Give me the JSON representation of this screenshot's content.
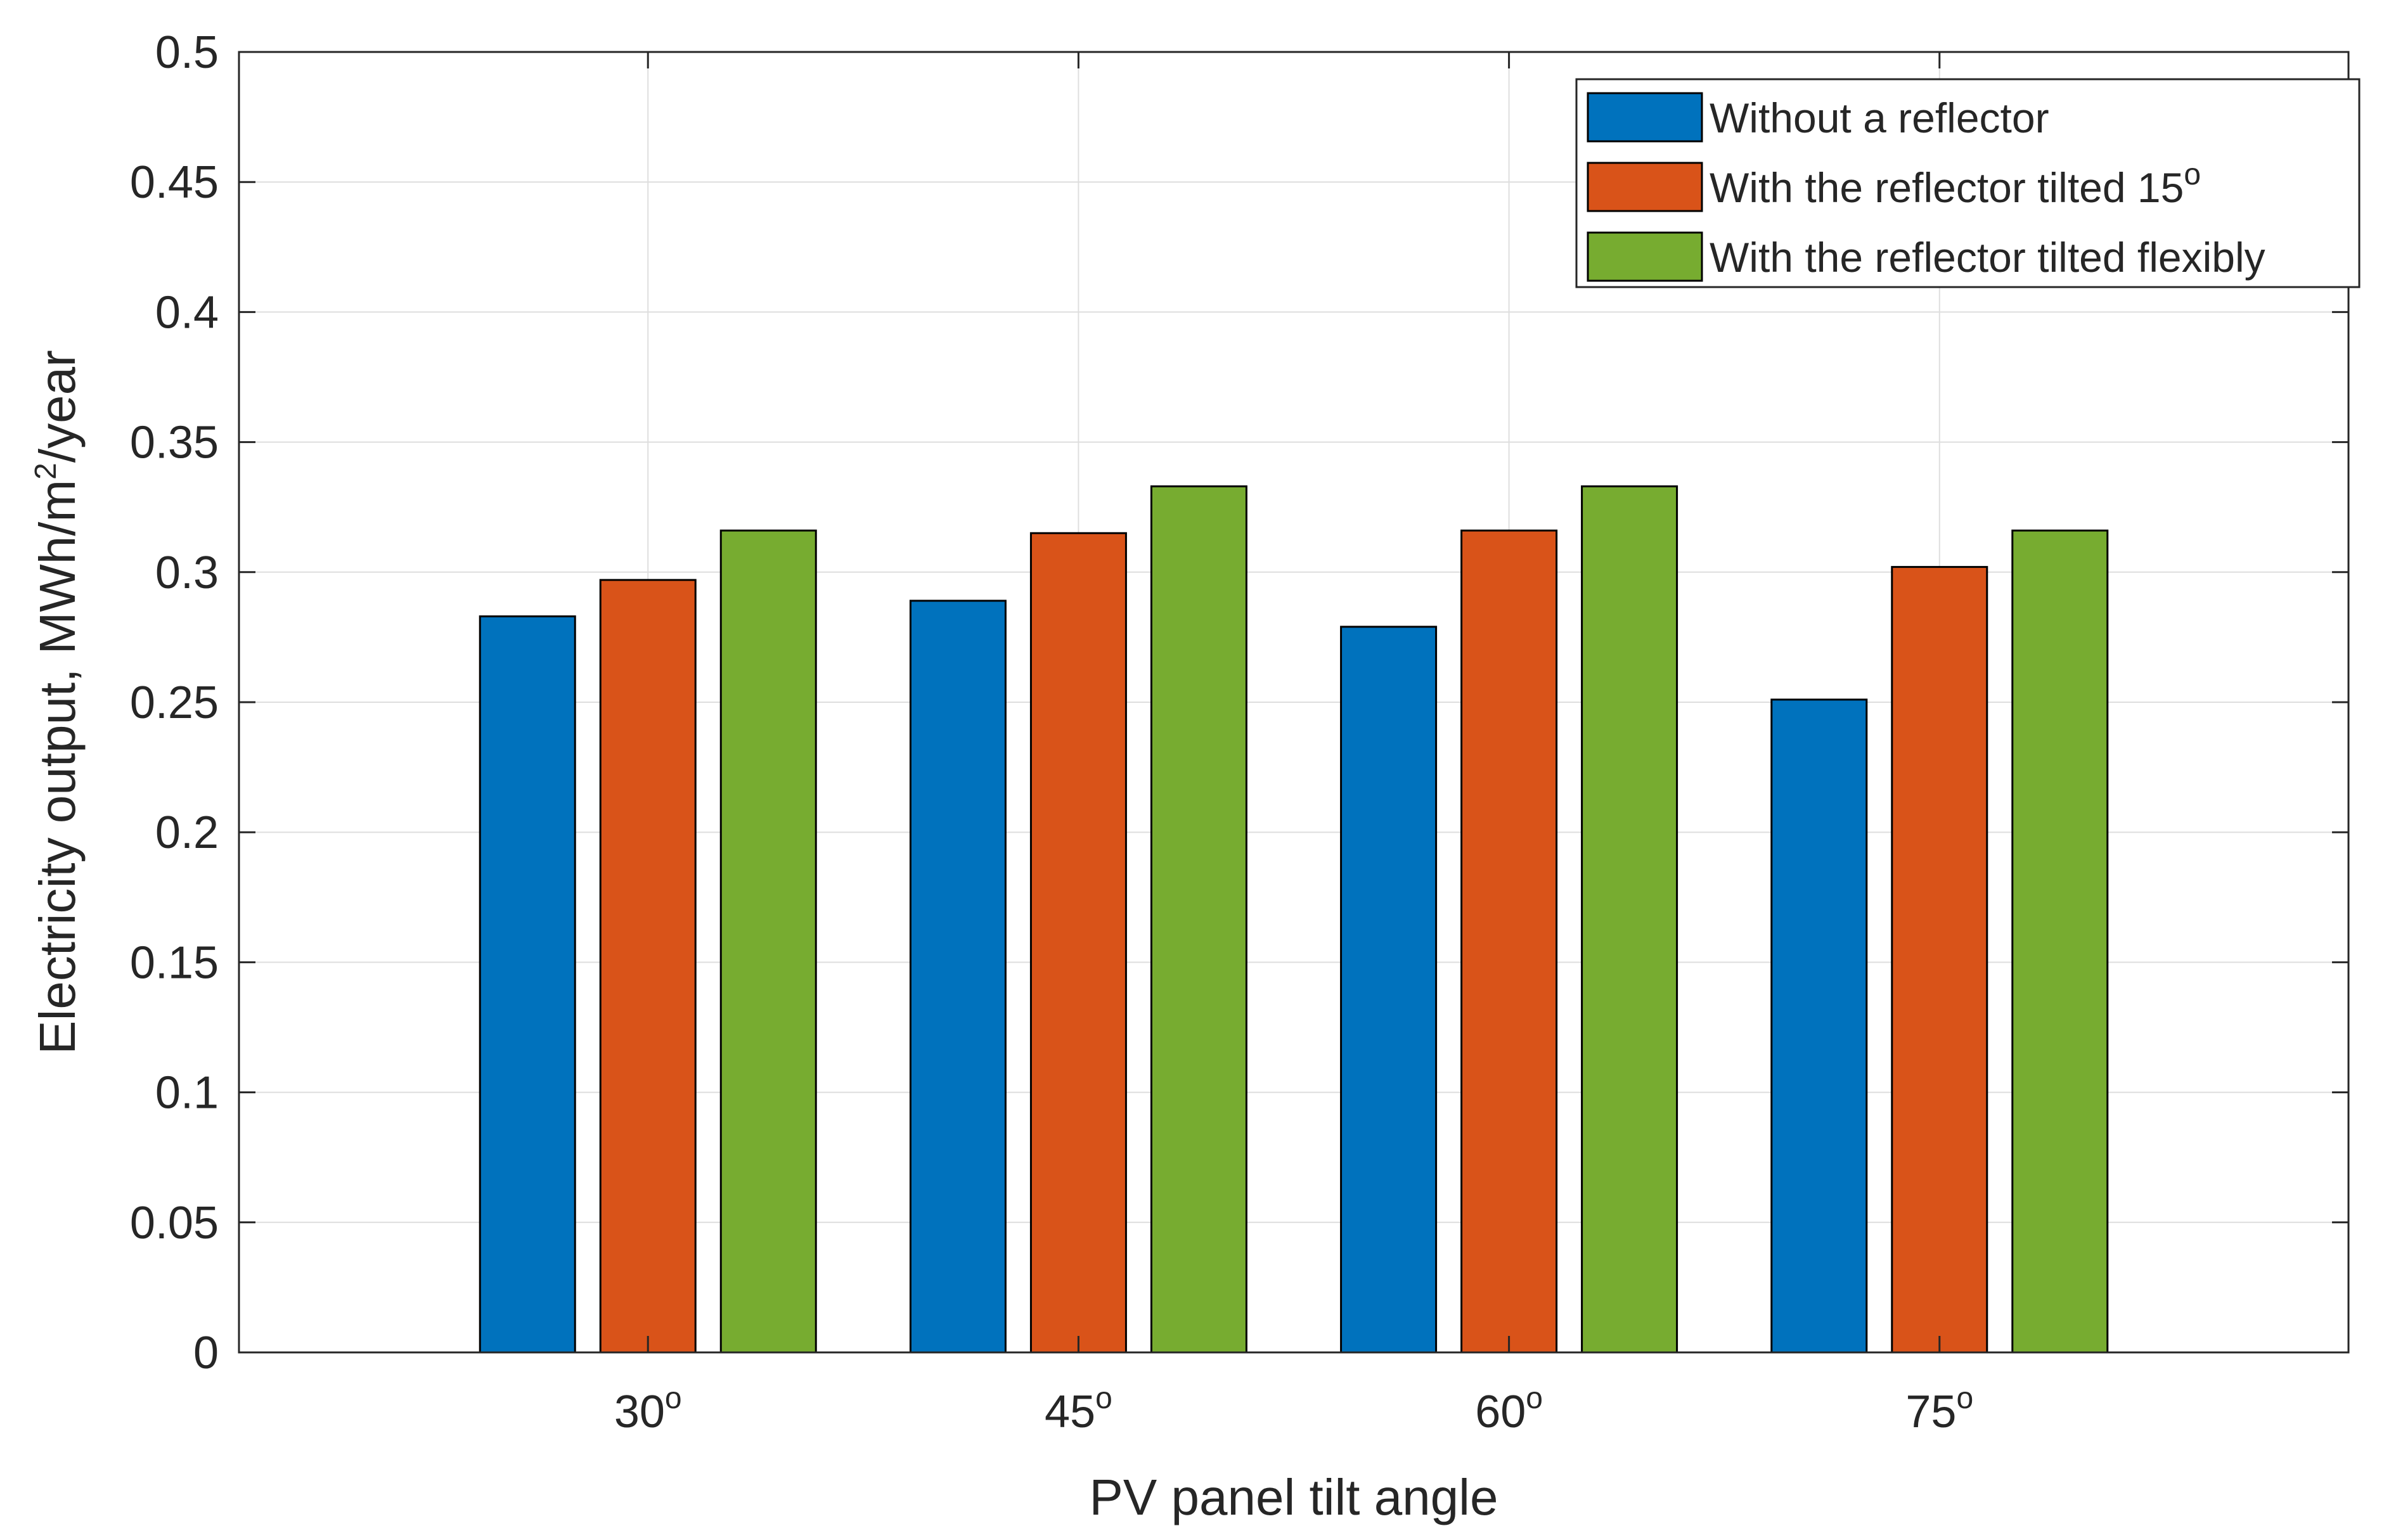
{
  "chart_data": {
    "type": "bar",
    "title": "",
    "xlabel": "PV panel tilt angle",
    "ylabel": {
      "main": "Electricity output, MWh/m",
      "sup": "2",
      "suffix": "/year"
    },
    "categories": [
      {
        "base": "30",
        "sup": "o"
      },
      {
        "base": "45",
        "sup": "o"
      },
      {
        "base": "60",
        "sup": "o"
      },
      {
        "base": "75",
        "sup": "o"
      }
    ],
    "series": [
      {
        "name": "Without a reflector",
        "name_sup": "",
        "color": "#0072BD",
        "values": [
          0.283,
          0.289,
          0.279,
          0.251
        ]
      },
      {
        "name": "With the reflector tilted 15",
        "name_sup": "o",
        "color": "#D95319",
        "values": [
          0.297,
          0.315,
          0.316,
          0.302
        ]
      },
      {
        "name": "With the reflector tilted flexibly",
        "name_sup": "",
        "color": "#77AC30",
        "values": [
          0.316,
          0.333,
          0.333,
          0.316
        ]
      }
    ],
    "ylim": [
      0,
      0.5
    ],
    "yticks": [
      "0",
      "0.05",
      "0.1",
      "0.15",
      "0.2",
      "0.25",
      "0.3",
      "0.35",
      "0.4",
      "0.45",
      "0.5"
    ],
    "grid": true,
    "legend_position": "top-right"
  }
}
